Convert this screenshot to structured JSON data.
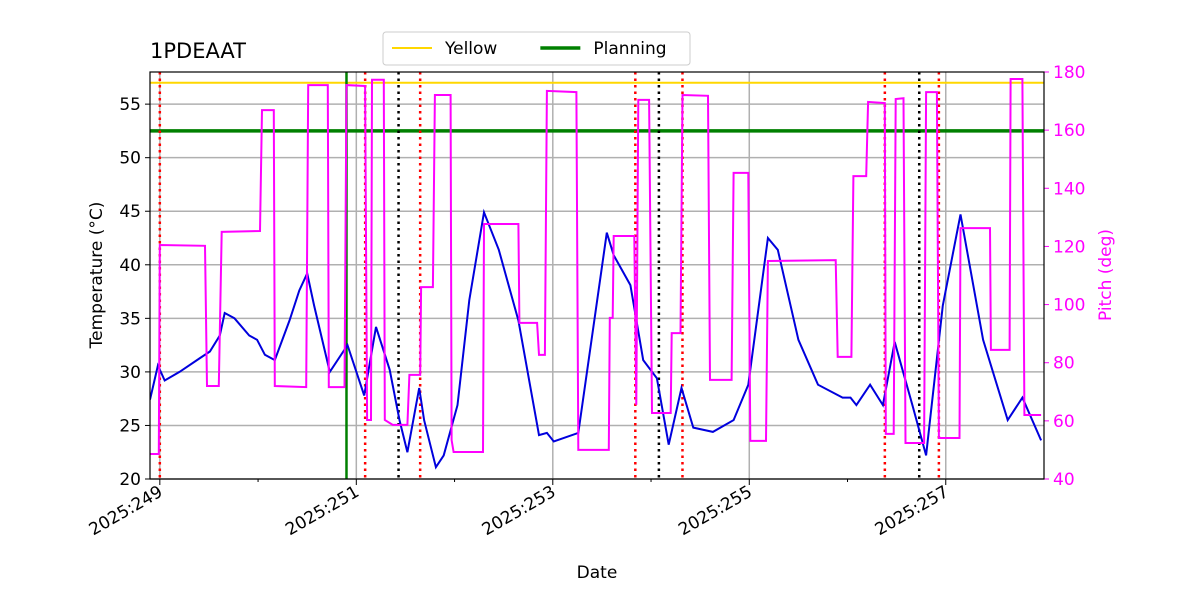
{
  "chart_data": {
    "type": "line",
    "title": "1PDEAAT",
    "xlabel": "Date",
    "ylabel": "Temperature (°C)",
    "y2label": "Pitch (deg)",
    "y2color": "#ff00ff",
    "xlim": [
      248.9,
      258
    ],
    "xticks": [
      {
        "value": 249,
        "label": "2025:249"
      },
      {
        "value": 251,
        "label": "2025:251"
      },
      {
        "value": 253,
        "label": "2025:253"
      },
      {
        "value": 255,
        "label": "2025:255"
      },
      {
        "value": 257,
        "label": "2025:257"
      }
    ],
    "xminorticks": [
      250,
      252,
      254,
      256
    ],
    "ylim": [
      20,
      58
    ],
    "yticks": [
      20,
      25,
      30,
      35,
      40,
      45,
      50,
      55
    ],
    "y2lim": [
      40,
      180
    ],
    "y2ticks": [
      40,
      60,
      80,
      100,
      120,
      140,
      160,
      180
    ],
    "grid": true,
    "legend": "top",
    "hlines": [
      {
        "name": "Yellow",
        "color": "#ffd700",
        "value": 57,
        "width": 2
      },
      {
        "name": "Planning",
        "color": "#008000",
        "value": 52.5,
        "width": 3.5
      }
    ],
    "vlines": [
      {
        "color": "#008000",
        "dash": "none",
        "x": [
          250.9
        ]
      },
      {
        "color": "#ff0000",
        "dash": "dotted",
        "x": [
          249.0,
          251.09,
          251.65,
          253.84,
          254.32,
          256.38,
          256.93
        ]
      },
      {
        "color": "#000000",
        "dash": "dotted",
        "x": [
          251.43,
          254.08,
          256.73
        ]
      }
    ],
    "series": [
      {
        "color": "#0000dd",
        "x": [
          248.9,
          248.98,
          249.05,
          249.2,
          249.41,
          249.51,
          249.61,
          249.66,
          249.76,
          249.91,
          249.99,
          250.07,
          250.17,
          250.32,
          250.42,
          250.5,
          250.57,
          250.73,
          250.91,
          251.08,
          251.2,
          251.34,
          251.44,
          251.52,
          251.64,
          251.69,
          251.81,
          251.89,
          252.03,
          252.15,
          252.3,
          252.45,
          252.65,
          252.86,
          252.94,
          253.01,
          253.26,
          253.55,
          253.62,
          253.79,
          253.92,
          254.06,
          254.18,
          254.31,
          254.43,
          254.63,
          254.84,
          254.99,
          255.19,
          255.29,
          255.5,
          255.7,
          255.95,
          256.03,
          256.09,
          256.23,
          256.36,
          256.48,
          256.56,
          256.66,
          256.8,
          256.97,
          257.15,
          257.38,
          257.63,
          257.78,
          257.97
        ],
        "values": [
          27.4,
          30.6,
          29.2,
          30.0,
          31.3,
          31.9,
          33.4,
          35.5,
          35.0,
          33.4,
          33.0,
          31.6,
          31.1,
          34.8,
          37.6,
          39.2,
          36.2,
          30.0,
          32.5,
          27.8,
          34.2,
          30.2,
          25.5,
          22.5,
          28.5,
          25.5,
          21.1,
          22.2,
          26.9,
          36.7,
          44.9,
          41.4,
          34.8,
          24.1,
          24.3,
          23.5,
          24.3,
          43.0,
          40.9,
          38.1,
          31.1,
          29.4,
          23.2,
          28.5,
          24.8,
          24.4,
          25.5,
          28.8,
          42.5,
          41.4,
          33.0,
          28.8,
          27.6,
          27.6,
          26.9,
          28.8,
          26.9,
          32.8,
          30.2,
          26.9,
          22.2,
          36.2,
          44.7,
          33.0,
          25.5,
          27.6,
          23.6
        ]
      },
      {
        "color": "#ff00ff",
        "axis": "y2",
        "x": [
          248.9,
          248.99,
          249.0,
          249.46,
          249.48,
          249.6,
          249.63,
          250.02,
          250.04,
          250.16,
          250.17,
          250.49,
          250.51,
          250.71,
          250.72,
          250.88,
          250.9,
          251.09,
          251.11,
          251.15,
          251.16,
          251.28,
          251.29,
          251.37,
          251.52,
          251.54,
          251.65,
          251.66,
          251.78,
          251.8,
          251.96,
          251.97,
          251.99,
          252.29,
          252.3,
          252.65,
          252.66,
          252.84,
          252.86,
          252.92,
          252.94,
          253.24,
          253.26,
          253.57,
          253.58,
          253.61,
          253.62,
          253.83,
          253.85,
          253.87,
          253.98,
          254.01,
          254.2,
          254.21,
          254.3,
          254.32,
          254.58,
          254.6,
          254.82,
          254.84,
          254.99,
          255.01,
          255.17,
          255.19,
          255.88,
          255.9,
          256.04,
          256.06,
          256.19,
          256.21,
          256.38,
          256.39,
          256.47,
          256.49,
          256.57,
          256.59,
          256.78,
          256.8,
          256.91,
          256.93,
          257.14,
          257.15,
          257.45,
          257.46,
          257.65,
          257.66,
          257.78,
          257.8,
          257.97
        ],
        "values": [
          48.6,
          48.6,
          120.5,
          120.2,
          72,
          72,
          125,
          125.3,
          166.9,
          166.9,
          72,
          71.6,
          175.5,
          175.5,
          71.6,
          71.6,
          175.5,
          175.2,
          60.3,
          60.3,
          177.3,
          177.3,
          60.3,
          58.6,
          58.6,
          75.8,
          75.8,
          106,
          106,
          172.1,
          172.1,
          53.4,
          49.3,
          49.3,
          127.7,
          127.7,
          93.7,
          93.7,
          82.7,
          82.7,
          173.5,
          173.1,
          50,
          50,
          95.4,
          95.4,
          123.6,
          123.6,
          65.5,
          170.4,
          170.4,
          62.7,
          62.7,
          90.2,
          90.2,
          172.1,
          171.8,
          74.1,
          74.1,
          145.3,
          145.3,
          53.1,
          53.1,
          115,
          115.3,
          82,
          82,
          144.2,
          144.2,
          169.7,
          169.3,
          55.5,
          55.5,
          170.7,
          171,
          52.4,
          52.4,
          173.1,
          173.1,
          54.1,
          54.1,
          126.3,
          126.3,
          84.4,
          84.4,
          177.6,
          177.6,
          62,
          62
        ]
      }
    ]
  }
}
